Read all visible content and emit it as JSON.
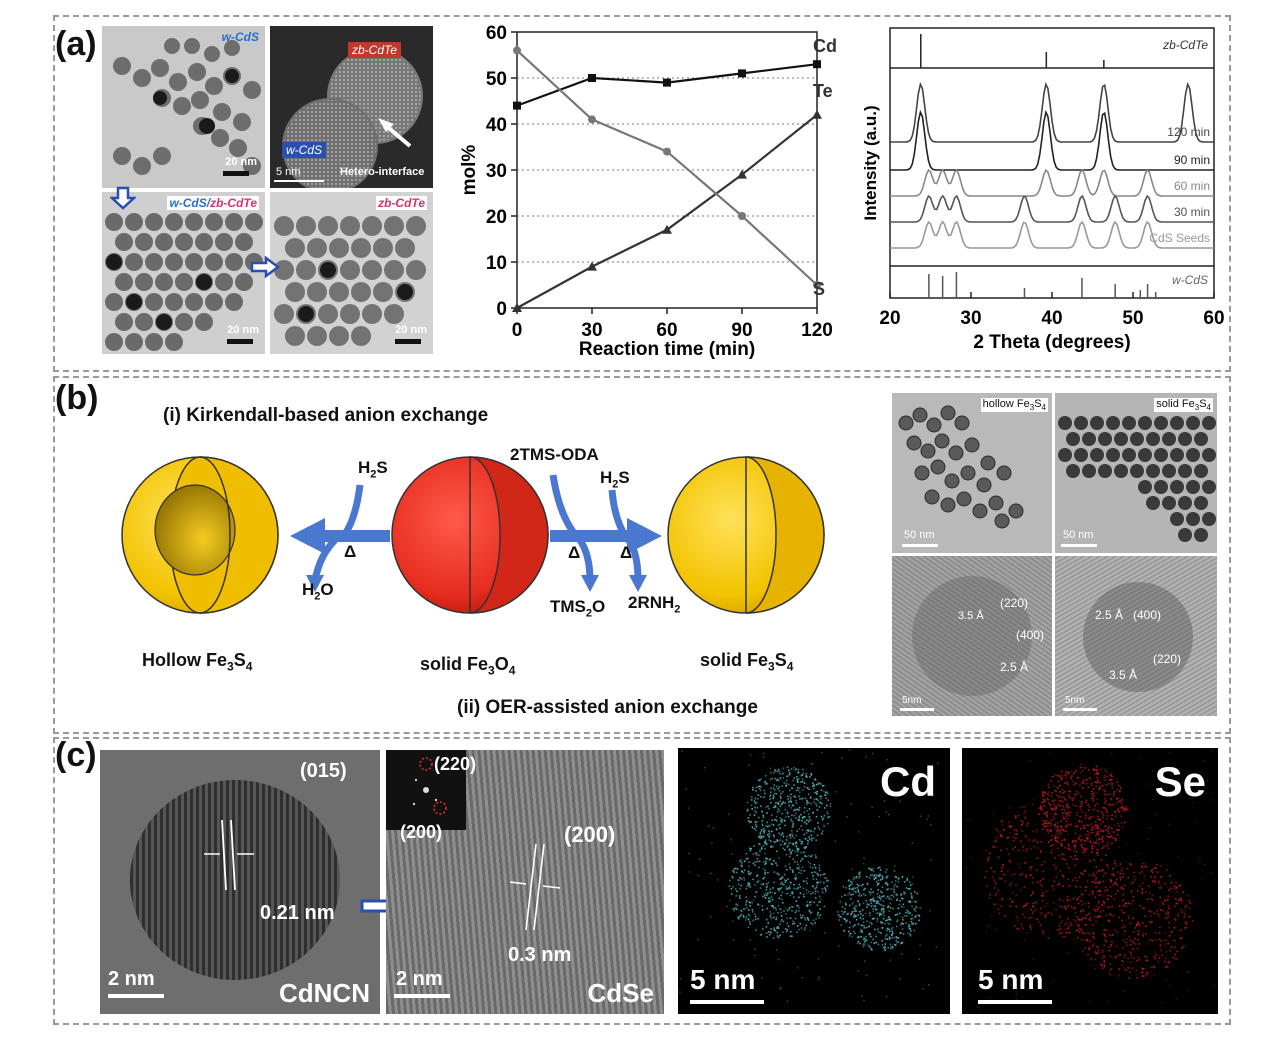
{
  "panels": {
    "a": "(a)",
    "b": "(b)",
    "c": "(c)"
  },
  "a_images": {
    "img1_label": "w-CdS",
    "img1_scale": "20 nm",
    "img2_label_top": "zb-CdTe",
    "img2_label_bottom": "w-CdS",
    "img2_scale": "5 nm",
    "img2_annotation": "Hetero-interface",
    "img3_label_a": "w-CdS/",
    "img3_label_b": "zb-CdTe",
    "img3_scale": "20 nm",
    "img4_label": "zb-CdTe",
    "img4_scale": "20 nm"
  },
  "chart_data": [
    {
      "type": "line",
      "xlabel": "Reaction time (min)",
      "ylabel": "mol%",
      "x": [
        0,
        30,
        60,
        90,
        120
      ],
      "xlim": [
        0,
        120
      ],
      "ylim": [
        0,
        60
      ],
      "xticks": [
        "0",
        "30",
        "60",
        "90",
        "120"
      ],
      "yticks": [
        "0",
        "10",
        "20",
        "30",
        "40",
        "50",
        "60"
      ],
      "grid": "horizontal dotted",
      "series": [
        {
          "name": "Cd",
          "values": [
            44,
            50,
            49,
            51,
            53
          ],
          "marker": "square",
          "color": "#111111"
        },
        {
          "name": "Te",
          "values": [
            0,
            9,
            17,
            29,
            42
          ],
          "marker": "triangle",
          "color": "#333333"
        },
        {
          "name": "S",
          "values": [
            56,
            41,
            34,
            20,
            5
          ],
          "marker": "circle",
          "color": "#777777"
        }
      ]
    },
    {
      "type": "line",
      "xlabel": "2 Theta (degrees)",
      "ylabel": "Intensity (a.u.)",
      "xlim": [
        20,
        60
      ],
      "xticks": [
        "20",
        "30",
        "40",
        "50",
        "60"
      ],
      "top_reference": {
        "name": "zb-CdTe",
        "peaks": [
          23.8,
          39.3,
          46.4
        ]
      },
      "bottom_reference": {
        "name": "w-CdS",
        "peaks": [
          24.8,
          26.5,
          28.2,
          36.6,
          43.7,
          47.8,
          50.9,
          51.8,
          52.8
        ]
      },
      "series": [
        {
          "name": "120 min",
          "peaks": [
            23.8,
            39.3,
            46.4,
            56.8
          ],
          "color": "#444444"
        },
        {
          "name": "90 min",
          "peaks": [
            23.8,
            39.3,
            46.4
          ],
          "color": "#222222"
        },
        {
          "name": "60 min",
          "peaks": [
            24.8,
            26.5,
            28.2,
            39.3,
            43.7,
            46.4,
            51.8
          ],
          "color": "#888888"
        },
        {
          "name": "30 min",
          "peaks": [
            24.8,
            26.5,
            28.2,
            36.6,
            43.7,
            47.8,
            51.8
          ],
          "color": "#555555"
        },
        {
          "name": "CdS Seeds",
          "peaks": [
            24.8,
            26.5,
            28.2,
            36.6,
            43.7,
            47.8,
            51.8
          ],
          "color": "#999999"
        }
      ]
    }
  ],
  "b_scheme": {
    "title_i": "(i) Kirkendall-based anion exchange",
    "title_ii": "(ii) OER-assisted anion exchange",
    "left_reagent": "H",
    "left_reagent_sub": "2",
    "left_reagent_tail": "S",
    "left_heat": "Δ",
    "left_product": "H",
    "left_product_sub": "2",
    "left_product_tail": "O",
    "right_reagent_1": "2TMS-ODA",
    "right_reagent_2": "H",
    "right_reagent_2_sub": "2",
    "right_reagent_2_tail": "S",
    "right_heat_1": "Δ",
    "right_heat_2": "Δ",
    "right_product_1": "TMS",
    "right_product_1_sub": "2",
    "right_product_1_tail": "O",
    "right_product_2": "2RNH",
    "right_product_2_sub": "2",
    "sphere_left_label": "Hollow Fe",
    "sphere_left_sub1": "3",
    "sphere_left_mid": "S",
    "sphere_left_sub2": "4",
    "sphere_mid_label": "solid Fe",
    "sphere_mid_sub1": "3",
    "sphere_mid_mid": "O",
    "sphere_mid_sub2": "4",
    "sphere_right_label": "solid Fe",
    "sphere_right_sub1": "3",
    "sphere_right_mid": "S",
    "sphere_right_sub2": "4",
    "colors": {
      "gold": "#f5c400",
      "red": "#e62c1f",
      "arrow": "#4a78d0"
    }
  },
  "b_images": {
    "tl_label": "hollow Fe",
    "tl_sub1": "3",
    "tl_mid": "S",
    "tl_sub2": "4",
    "tl_scale": "50 nm",
    "tr_label": "solid Fe",
    "tr_sub1": "3",
    "tr_mid": "S",
    "tr_sub2": "4",
    "tr_scale": "50 nm",
    "bl_d1": "3.5 Å",
    "bl_hkl1": "(220)",
    "bl_hkl2": "(400)",
    "bl_d2": "2.5 Å",
    "bl_scale": "5nm",
    "br_d1": "2.5 Å",
    "br_hkl1": "(400)",
    "br_hkl2": "(220)",
    "br_d2": "3.5 Å",
    "br_scale": "5nm"
  },
  "c_images": {
    "img1_hkl": "(015)",
    "img1_d": "0.21 nm",
    "img1_scale": "2 nm",
    "img1_name": "CdNCN",
    "img2_fft1": "(220)",
    "img2_fft2": "(200)",
    "img2_hkl": "(200)",
    "img2_d": "0.3 nm",
    "img2_scale": "2 nm",
    "img2_name": "CdSe",
    "img3_el": "Cd",
    "img3_scale": "5 nm",
    "img4_el": "Se",
    "img4_scale": "5 nm",
    "colors": {
      "cd_map": "#4fb0b8",
      "se_map": "#c0181c"
    }
  }
}
